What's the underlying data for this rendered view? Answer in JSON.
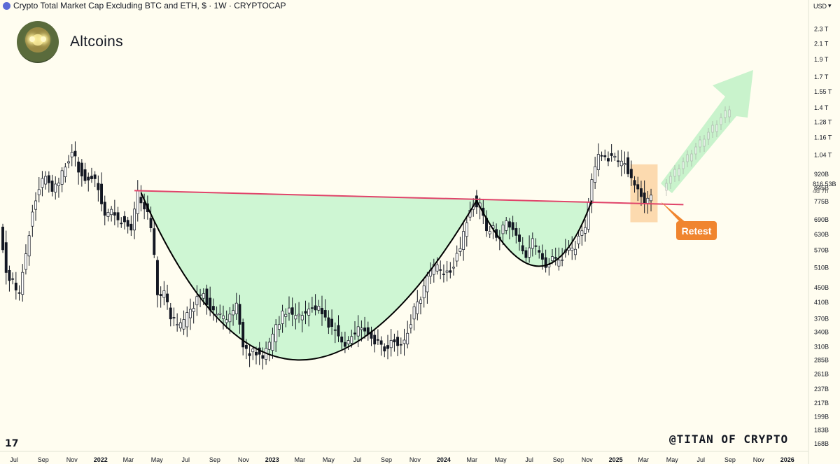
{
  "header": {
    "title": "Crypto Total Market Cap Excluding BTC and ETH, $ · 1W · CRYPTOCAP",
    "currency": "USD"
  },
  "brand": {
    "name": "Altcoins"
  },
  "annotations": {
    "retest_label": "Retest",
    "watermark": "@TITAN OF CRYPTO",
    "tv_logo": "17",
    "last_price": "816.53B",
    "countdown": "4d 7h"
  },
  "colors": {
    "background": "#fffdf0",
    "bull_candle": "#ffffff",
    "bear_candle": "#131722",
    "neckline": "#e0446a",
    "cup_fill": "#c9f5cf",
    "cup_curve": "#000000",
    "retest_box": "#fbd3a3",
    "retest_label": "#f0852f",
    "projection_arrow": "#c3f2c8"
  },
  "chart_data": {
    "type": "candlestick",
    "title": "Crypto Total Market Cap Excluding BTC and ETH, $ · 1W · CRYPTOCAP",
    "scale": "log",
    "ylim": [
      160000000000,
      2600000000000
    ],
    "y_ticks": [
      "2.3 T",
      "2.1 T",
      "1.9 T",
      "1.7 T",
      "1.55 T",
      "1.4 T",
      "1.28 T",
      "1.16 T",
      "1.04 T",
      "920B",
      "845B",
      "775B",
      "690B",
      "630B",
      "570B",
      "510B",
      "450B",
      "410B",
      "370B",
      "340B",
      "310B",
      "285B",
      "261B",
      "237B",
      "217B",
      "199B",
      "183B",
      "168B"
    ],
    "y_tick_values": [
      2300000000000.0,
      2100000000000.0,
      1900000000000.0,
      1700000000000.0,
      1550000000000.0,
      1400000000000.0,
      1280000000000.0,
      1160000000000.0,
      1040000000000.0,
      920000000000.0,
      845000000000.0,
      775000000000.0,
      690000000000.0,
      630000000000.0,
      570000000000.0,
      510000000000.0,
      450000000000.0,
      410000000000.0,
      370000000000.0,
      340000000000.0,
      310000000000.0,
      285000000000.0,
      261000000000.0,
      237000000000.0,
      217000000000.0,
      199000000000.0,
      183000000000.0,
      168000000000.0
    ],
    "x_ticks": [
      "Jul",
      "Sep",
      "Nov",
      "2022",
      "Mar",
      "May",
      "Jul",
      "Sep",
      "Nov",
      "2023",
      "Mar",
      "May",
      "Jul",
      "Sep",
      "Nov",
      "2024",
      "Mar",
      "May",
      "Jul",
      "Sep",
      "Nov",
      "2025",
      "Mar",
      "May",
      "Jul",
      "Sep",
      "Nov",
      "2026"
    ],
    "x_tick_dates": [
      "2021-07-01",
      "2021-09-01",
      "2021-11-01",
      "2022-01-01",
      "2022-03-01",
      "2022-05-01",
      "2022-07-01",
      "2022-09-01",
      "2022-11-01",
      "2023-01-01",
      "2023-03-01",
      "2023-05-01",
      "2023-07-01",
      "2023-09-01",
      "2023-11-01",
      "2024-01-01",
      "2024-03-01",
      "2024-05-01",
      "2024-07-01",
      "2024-09-01",
      "2024-11-01",
      "2025-01-01",
      "2025-03-01",
      "2025-05-01",
      "2025-07-01",
      "2025-09-01",
      "2025-11-01",
      "2026-01-01"
    ],
    "bold_ticks": [
      "2022",
      "2023",
      "2024",
      "2025",
      "2026"
    ],
    "series": [
      {
        "kind": "close_path",
        "points": [
          [
            "2021-06-07",
            680000000000.0
          ],
          [
            "2021-06-21",
            500000000000.0
          ],
          [
            "2021-07-05",
            460000000000.0
          ],
          [
            "2021-07-19",
            430000000000.0
          ],
          [
            "2021-08-02",
            560000000000.0
          ],
          [
            "2021-08-16",
            740000000000.0
          ],
          [
            "2021-08-30",
            840000000000.0
          ],
          [
            "2021-09-13",
            910000000000.0
          ],
          [
            "2021-09-27",
            840000000000.0
          ],
          [
            "2021-10-11",
            890000000000.0
          ],
          [
            "2021-10-25",
            960000000000.0
          ],
          [
            "2021-11-08",
            1070000000000.0
          ],
          [
            "2021-11-22",
            960000000000.0
          ],
          [
            "2021-12-06",
            890000000000.0
          ],
          [
            "2021-12-20",
            920000000000.0
          ],
          [
            "2022-01-03",
            850000000000.0
          ],
          [
            "2022-01-17",
            720000000000.0
          ],
          [
            "2022-01-31",
            740000000000.0
          ],
          [
            "2022-02-14",
            680000000000.0
          ],
          [
            "2022-02-28",
            700000000000.0
          ],
          [
            "2022-03-14",
            660000000000.0
          ],
          [
            "2022-03-28",
            820000000000.0
          ],
          [
            "2022-04-11",
            760000000000.0
          ],
          [
            "2022-04-25",
            660000000000.0
          ],
          [
            "2022-05-09",
            440000000000.0
          ],
          [
            "2022-05-23",
            430000000000.0
          ],
          [
            "2022-06-06",
            380000000000.0
          ],
          [
            "2022-06-20",
            350000000000.0
          ],
          [
            "2022-07-04",
            360000000000.0
          ],
          [
            "2022-07-18",
            390000000000.0
          ],
          [
            "2022-08-01",
            420000000000.0
          ],
          [
            "2022-08-15",
            440000000000.0
          ],
          [
            "2022-08-29",
            390000000000.0
          ],
          [
            "2022-09-12",
            380000000000.0
          ],
          [
            "2022-09-26",
            370000000000.0
          ],
          [
            "2022-10-10",
            370000000000.0
          ],
          [
            "2022-10-24",
            400000000000.0
          ],
          [
            "2022-11-07",
            310000000000.0
          ],
          [
            "2022-11-21",
            300000000000.0
          ],
          [
            "2022-12-05",
            300000000000.0
          ],
          [
            "2022-12-19",
            290000000000.0
          ],
          [
            "2023-01-02",
            310000000000.0
          ],
          [
            "2023-01-16",
            350000000000.0
          ],
          [
            "2023-01-30",
            380000000000.0
          ],
          [
            "2023-02-13",
            390000000000.0
          ],
          [
            "2023-02-27",
            370000000000.0
          ],
          [
            "2023-03-13",
            380000000000.0
          ],
          [
            "2023-03-27",
            390000000000.0
          ],
          [
            "2023-04-10",
            400000000000.0
          ],
          [
            "2023-04-24",
            380000000000.0
          ],
          [
            "2023-05-08",
            360000000000.0
          ],
          [
            "2023-05-22",
            350000000000.0
          ],
          [
            "2023-06-05",
            310000000000.0
          ],
          [
            "2023-06-19",
            320000000000.0
          ],
          [
            "2023-07-03",
            340000000000.0
          ],
          [
            "2023-07-17",
            350000000000.0
          ],
          [
            "2023-07-31",
            340000000000.0
          ],
          [
            "2023-08-14",
            320000000000.0
          ],
          [
            "2023-08-28",
            310000000000.0
          ],
          [
            "2023-09-11",
            310000000000.0
          ],
          [
            "2023-09-25",
            320000000000.0
          ],
          [
            "2023-10-09",
            310000000000.0
          ],
          [
            "2023-10-23",
            340000000000.0
          ],
          [
            "2023-11-06",
            390000000000.0
          ],
          [
            "2023-11-20",
            420000000000.0
          ],
          [
            "2023-12-04",
            480000000000.0
          ],
          [
            "2023-12-18",
            510000000000.0
          ],
          [
            "2024-01-01",
            500000000000.0
          ],
          [
            "2024-01-15",
            490000000000.0
          ],
          [
            "2024-01-29",
            520000000000.0
          ],
          [
            "2024-02-12",
            580000000000.0
          ],
          [
            "2024-02-26",
            690000000000.0
          ],
          [
            "2024-03-11",
            780000000000.0
          ],
          [
            "2024-03-25",
            750000000000.0
          ],
          [
            "2024-04-08",
            640000000000.0
          ],
          [
            "2024-04-22",
            650000000000.0
          ],
          [
            "2024-05-06",
            620000000000.0
          ],
          [
            "2024-05-20",
            680000000000.0
          ],
          [
            "2024-06-03",
            660000000000.0
          ],
          [
            "2024-06-17",
            590000000000.0
          ],
          [
            "2024-07-01",
            540000000000.0
          ],
          [
            "2024-07-15",
            600000000000.0
          ],
          [
            "2024-07-29",
            550000000000.0
          ],
          [
            "2024-08-12",
            510000000000.0
          ],
          [
            "2024-08-26",
            540000000000.0
          ],
          [
            "2024-09-09",
            520000000000.0
          ],
          [
            "2024-09-23",
            580000000000.0
          ],
          [
            "2024-10-07",
            570000000000.0
          ],
          [
            "2024-10-21",
            610000000000.0
          ],
          [
            "2024-11-04",
            660000000000.0
          ],
          [
            "2024-11-18",
            880000000000.0
          ],
          [
            "2024-12-02",
            1050000000000.0
          ],
          [
            "2024-12-16",
            1020000000000.0
          ],
          [
            "2024-12-30",
            1040000000000.0
          ],
          [
            "2025-01-13",
            980000000000.0
          ],
          [
            "2025-01-27",
            1000000000000.0
          ],
          [
            "2025-02-10",
            900000000000.0
          ],
          [
            "2025-02-24",
            840000000000.0
          ],
          [
            "2025-03-10",
            760000000000.0
          ],
          [
            "2025-03-24",
            816500000000.0
          ]
        ]
      }
    ],
    "overlays": {
      "neckline": {
        "from": [
          "2022-03-14",
          830000000000.0
        ],
        "to": [
          "2025-05-25",
          760000000000.0
        ],
        "color": "#e0446a"
      },
      "cup": {
        "left": [
          "2022-03-28",
          820000000000.0
        ],
        "bottom": [
          "2023-02-01",
          285000000000.0
        ],
        "right": [
          "2024-03-11",
          780000000000.0
        ]
      },
      "handle": {
        "left": [
          "2024-03-11",
          780000000000.0
        ],
        "bottom": [
          "2024-08-01",
          515000000000.0
        ],
        "right": [
          "2024-11-11",
          780000000000.0
        ]
      },
      "retest_zone": {
        "from": "2025-02-01",
        "to": "2025-03-31",
        "high": 980000000000.0,
        "low": 680000000000.0
      }
    }
  }
}
